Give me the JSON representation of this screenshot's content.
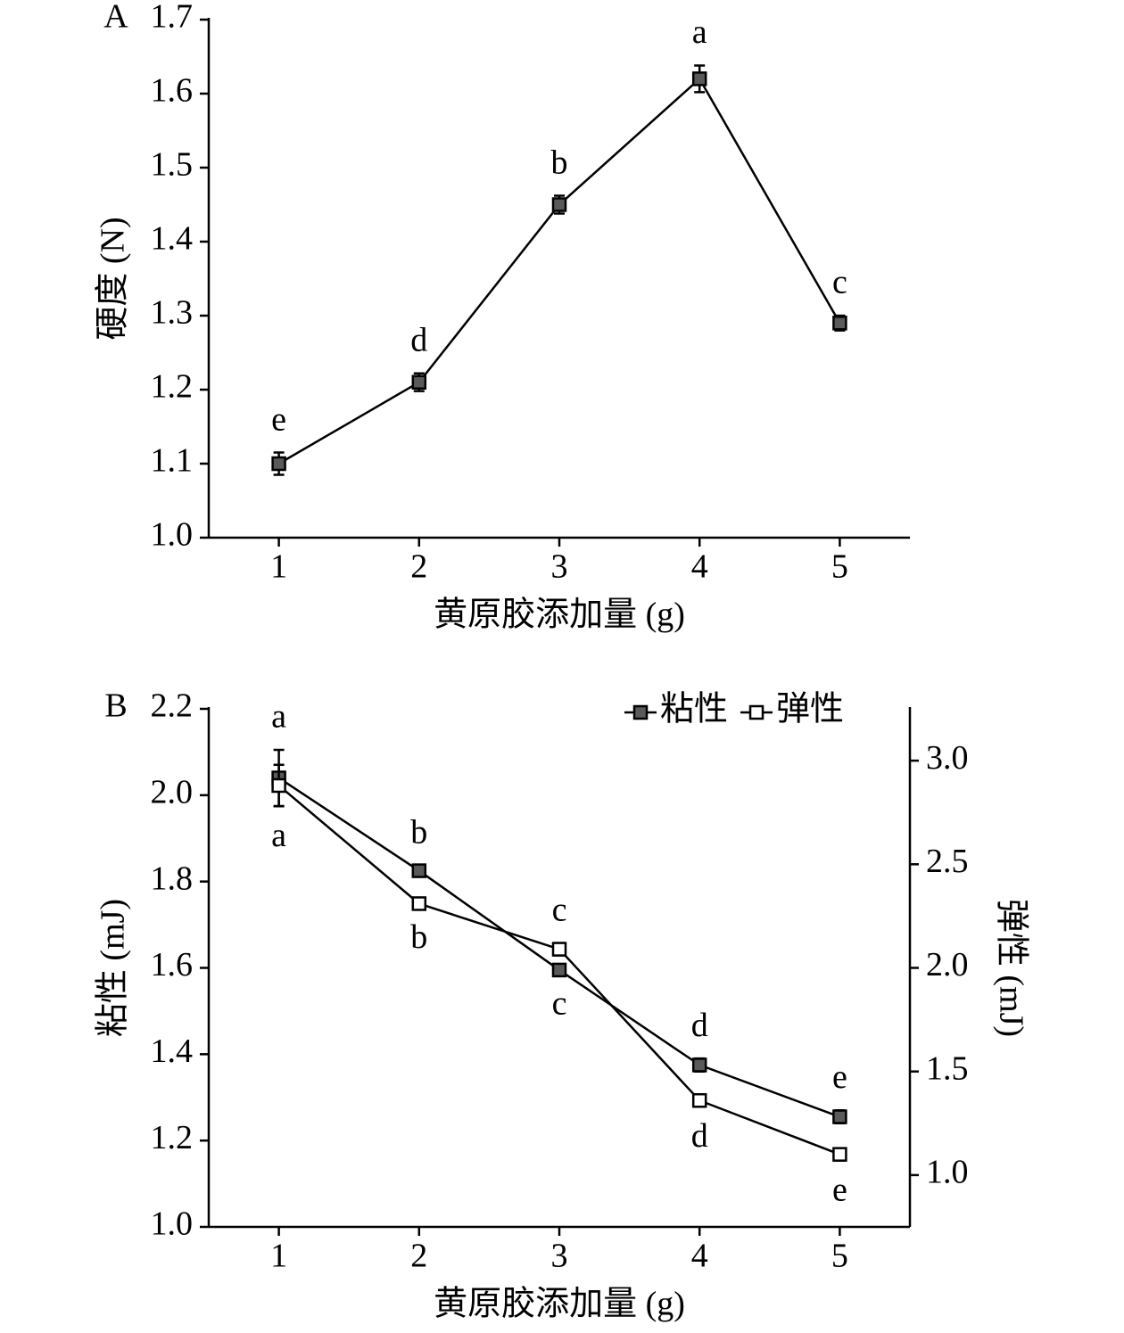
{
  "chart_data": [
    {
      "type": "line",
      "panel_label": "A",
      "ylabel": "硬度 (N)",
      "xlabel": "黄原胶添加量 (g)",
      "x": [
        1,
        2,
        3,
        4,
        5
      ],
      "xlim": [
        0.5,
        5.5
      ],
      "xticks": [
        1,
        2,
        3,
        4,
        5
      ],
      "ylim": [
        1.0,
        1.7
      ],
      "yticks": [
        {
          "value": 1.0,
          "label": "1.0"
        },
        1.1,
        1.2,
        1.3,
        1.4,
        1.5,
        1.6,
        1.7
      ],
      "series": [
        {
          "name": "硬度",
          "color": "#5a5a5a",
          "values": [
            1.1,
            1.21,
            1.45,
            1.62,
            1.29
          ],
          "errors": [
            0.015,
            0.012,
            0.012,
            0.018,
            0.01
          ],
          "sig_labels": [
            "e",
            "d",
            "b",
            "a",
            "c"
          ]
        }
      ]
    },
    {
      "type": "line",
      "panel_label": "B",
      "ylabel": "粘性 (mJ)",
      "y2label": "弹性 (mJ)",
      "xlabel": "黄原胶添加量 (g)",
      "x": [
        1,
        2,
        3,
        4,
        5
      ],
      "xlim": [
        0.5,
        5.5
      ],
      "xticks": [
        1,
        2,
        3,
        4,
        5
      ],
      "ylim": [
        1.0,
        2.2
      ],
      "yticks": [
        {
          "value": 1.0,
          "label": "1.0"
        },
        1.2,
        1.4,
        1.6,
        1.8,
        {
          "value": 2.0,
          "label": "2.0"
        },
        2.2
      ],
      "y2lim": [
        0.75,
        3.25
      ],
      "y2ticks": [
        {
          "value": 1.0,
          "label": "1.0"
        },
        1.5,
        {
          "value": 2.0,
          "label": "2.0"
        },
        2.5,
        {
          "value": 3.0,
          "label": "3.0"
        }
      ],
      "legend": "upper right",
      "series": [
        {
          "name": "粘性",
          "color": "#5a5a5a",
          "values": [
            2.04,
            1.825,
            1.595,
            1.375,
            1.255
          ],
          "errors": [
            0.065,
            0.012,
            0.01,
            0.015,
            0.015
          ],
          "sig_labels": [
            "a",
            "b",
            "c",
            "d",
            "e"
          ]
        },
        {
          "name": "弹性",
          "color": "#ffffff",
          "axis": "y2",
          "values": [
            2.88,
            2.31,
            2.09,
            1.36,
            1.1
          ],
          "errors": [
            0.1,
            0.02,
            0.03,
            0.03,
            0.03
          ],
          "sig_labels": [
            "a",
            "b",
            "c",
            "d",
            "e"
          ]
        }
      ]
    }
  ]
}
